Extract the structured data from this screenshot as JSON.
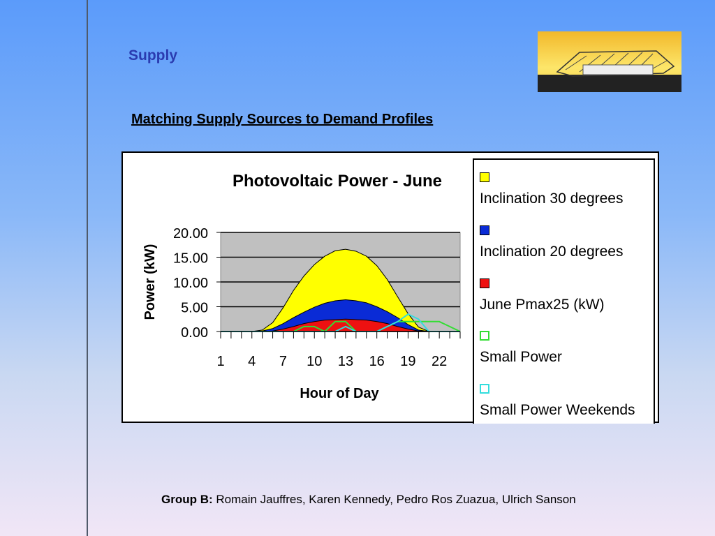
{
  "slide": {
    "section_title": "Supply",
    "subtitle": "Matching Supply Sources to Demand Profiles",
    "footer_group": "Group B:",
    "footer_names": " Romain Jauffres, Karen Kennedy, Pedro Ros Zuazua, Ulrich Sanson"
  },
  "chart_data": {
    "type": "area",
    "title": "Photovoltaic Power - June",
    "xlabel": "Hour of Day",
    "ylabel": "Power (kW)",
    "ylim": [
      0,
      20
    ],
    "y_ticks": [
      "0.00",
      "5.00",
      "10.00",
      "15.00",
      "20.00"
    ],
    "x": [
      1,
      2,
      3,
      4,
      5,
      6,
      7,
      8,
      9,
      10,
      11,
      12,
      13,
      14,
      15,
      16,
      17,
      18,
      19,
      20,
      21,
      22,
      23,
      24
    ],
    "x_tick_labels": [
      "1",
      "4",
      "7",
      "10",
      "13",
      "16",
      "19",
      "22"
    ],
    "grid": true,
    "legend_position": "right",
    "series": [
      {
        "name": "Inclination 30 degrees",
        "kind": "area",
        "color": "#ffff00",
        "values": [
          0,
          0,
          0,
          0,
          0.3,
          1.8,
          4.8,
          8.3,
          11.2,
          13.5,
          15.2,
          16.3,
          16.6,
          16.2,
          15.2,
          13.3,
          10.5,
          7.0,
          3.6,
          0.9,
          0,
          0,
          0,
          0
        ]
      },
      {
        "name": "Inclination 20 degrees",
        "kind": "area",
        "color": "#0a2bd6",
        "values": [
          0,
          0,
          0,
          0,
          0.1,
          0.6,
          1.6,
          2.8,
          3.9,
          4.9,
          5.7,
          6.2,
          6.4,
          6.2,
          5.8,
          5.0,
          4.0,
          2.8,
          1.4,
          0.3,
          0,
          0,
          0,
          0
        ]
      },
      {
        "name": "June Pmax25 (kW)",
        "kind": "area",
        "color": "#ee1111",
        "values": [
          0,
          0,
          0,
          0,
          0,
          0.1,
          0.5,
          1.0,
          1.6,
          2.0,
          2.3,
          2.4,
          2.5,
          2.4,
          2.3,
          2.0,
          1.6,
          1.0,
          0.5,
          0.1,
          0,
          0,
          0,
          0
        ]
      },
      {
        "name": "Small Power",
        "kind": "line",
        "color": "#33dd33",
        "values": [
          0,
          0,
          0,
          0,
          0,
          0,
          0,
          0,
          1.0,
          1.0,
          0,
          2.0,
          2.0,
          0,
          0,
          0,
          1.0,
          2.0,
          2.0,
          2.0,
          2.0,
          2.0,
          1.0,
          0
        ]
      },
      {
        "name": "Small Power Weekends",
        "kind": "line",
        "color": "#33dddd",
        "values": [
          0,
          0,
          0,
          0,
          0,
          0,
          0,
          0,
          0,
          0,
          0,
          0,
          1.0,
          0,
          0,
          0,
          1.0,
          2.0,
          3.5,
          2.5,
          0,
          0,
          0,
          0
        ]
      }
    ]
  }
}
